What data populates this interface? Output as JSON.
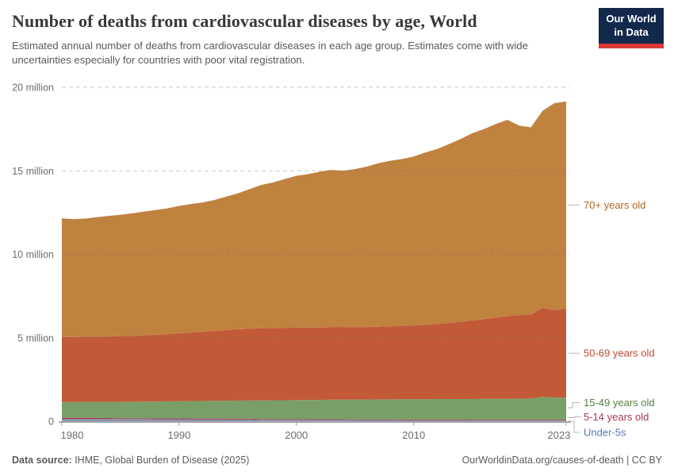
{
  "header": {
    "title": "Number of deaths from cardiovascular diseases by age, World",
    "subtitle": "Estimated annual number of deaths from cardiovascular diseases in each age group. Estimates come with wide uncertainties especially for countries with poor vital registration.",
    "logo": {
      "line1": "Our World",
      "line2": "in Data"
    }
  },
  "chart_data": {
    "type": "area",
    "stacked": true,
    "title": "Number of deaths from cardiovascular diseases by age, World",
    "values_unit": "millions of deaths per year",
    "ylim": [
      0,
      20
    ],
    "grid": true,
    "legend_position": "right",
    "y_ticks": [
      {
        "value": 0,
        "label": "0"
      },
      {
        "value": 5,
        "label": "5 million"
      },
      {
        "value": 10,
        "label": "10 million"
      },
      {
        "value": 15,
        "label": "15 million"
      },
      {
        "value": 20,
        "label": "20 million"
      }
    ],
    "x_ticks": [
      1980,
      1990,
      2000,
      2010,
      2023
    ],
    "x": [
      1980,
      1981,
      1982,
      1983,
      1984,
      1985,
      1986,
      1987,
      1988,
      1989,
      1990,
      1991,
      1992,
      1993,
      1994,
      1995,
      1996,
      1997,
      1998,
      1999,
      2000,
      2001,
      2002,
      2003,
      2004,
      2005,
      2006,
      2007,
      2008,
      2009,
      2010,
      2011,
      2012,
      2013,
      2014,
      2015,
      2016,
      2017,
      2018,
      2019,
      2020,
      2021,
      2022,
      2023
    ],
    "series": [
      {
        "name": "Under-5s",
        "color": "#8B92B2",
        "label_color": "#5778B8",
        "values": [
          0.14,
          0.14,
          0.14,
          0.14,
          0.13,
          0.13,
          0.13,
          0.13,
          0.12,
          0.12,
          0.12,
          0.11,
          0.11,
          0.11,
          0.1,
          0.1,
          0.1,
          0.09,
          0.09,
          0.09,
          0.09,
          0.08,
          0.08,
          0.08,
          0.08,
          0.07,
          0.07,
          0.07,
          0.07,
          0.06,
          0.06,
          0.06,
          0.06,
          0.06,
          0.06,
          0.05,
          0.05,
          0.05,
          0.05,
          0.05,
          0.05,
          0.05,
          0.05,
          0.05
        ]
      },
      {
        "name": "5-14 years old",
        "color": "#9E3648",
        "label_color": "#A63950",
        "values": [
          0.06,
          0.06,
          0.06,
          0.06,
          0.06,
          0.05,
          0.05,
          0.05,
          0.05,
          0.05,
          0.05,
          0.05,
          0.05,
          0.05,
          0.05,
          0.05,
          0.05,
          0.04,
          0.04,
          0.04,
          0.04,
          0.04,
          0.04,
          0.04,
          0.04,
          0.04,
          0.04,
          0.04,
          0.04,
          0.04,
          0.04,
          0.04,
          0.04,
          0.04,
          0.04,
          0.04,
          0.04,
          0.04,
          0.04,
          0.04,
          0.04,
          0.04,
          0.04,
          0.04
        ]
      },
      {
        "name": "15-49 years old",
        "color": "#7A9E68",
        "label_color": "#578145",
        "values": [
          0.95,
          0.95,
          0.96,
          0.96,
          0.97,
          0.99,
          0.99,
          1.0,
          1.01,
          1.02,
          1.03,
          1.05,
          1.05,
          1.06,
          1.08,
          1.09,
          1.09,
          1.12,
          1.13,
          1.13,
          1.14,
          1.16,
          1.16,
          1.17,
          1.17,
          1.19,
          1.19,
          1.2,
          1.2,
          1.22,
          1.22,
          1.22,
          1.23,
          1.23,
          1.23,
          1.24,
          1.25,
          1.25,
          1.25,
          1.26,
          1.28,
          1.37,
          1.33,
          1.32
        ]
      },
      {
        "name": "50-69 years old",
        "color": "#C25A38",
        "label_color": "#BF4A32",
        "values": [
          3.9,
          3.9,
          3.9,
          3.91,
          3.92,
          3.93,
          3.95,
          3.97,
          4.0,
          4.03,
          4.06,
          4.1,
          4.15,
          4.19,
          4.23,
          4.27,
          4.3,
          4.32,
          4.33,
          4.34,
          4.34,
          4.34,
          4.34,
          4.34,
          4.34,
          4.34,
          4.35,
          4.36,
          4.38,
          4.39,
          4.42,
          4.46,
          4.5,
          4.56,
          4.63,
          4.71,
          4.78,
          4.87,
          4.96,
          5.01,
          5.03,
          5.32,
          5.24,
          5.33
        ]
      },
      {
        "name": "70+ years old",
        "color": "#C0823F",
        "label_color": "#B26425",
        "values": [
          7.1,
          7.05,
          7.08,
          7.15,
          7.22,
          7.26,
          7.33,
          7.4,
          7.47,
          7.53,
          7.64,
          7.69,
          7.74,
          7.84,
          7.99,
          8.14,
          8.36,
          8.58,
          8.71,
          8.9,
          9.09,
          9.18,
          9.33,
          9.42,
          9.37,
          9.46,
          9.6,
          9.78,
          9.91,
          9.99,
          10.11,
          10.32,
          10.47,
          10.71,
          10.94,
          11.21,
          11.38,
          11.59,
          11.75,
          11.34,
          11.2,
          11.82,
          12.39,
          12.41
        ]
      }
    ]
  },
  "footer": {
    "source_label": "Data source:",
    "source": " IHME, Global Burden of Disease (2025)",
    "right": "OurWorldinData.org/causes-of-death | CC BY"
  }
}
